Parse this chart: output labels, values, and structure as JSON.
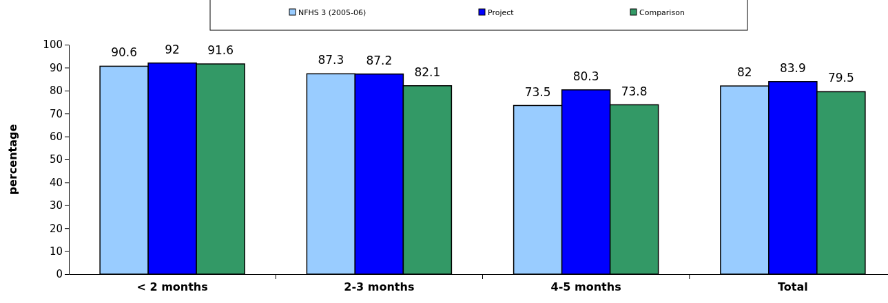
{
  "chart_data": {
    "type": "bar",
    "ylabel": "percentage",
    "categories": [
      "< 2 months",
      "2-3 months",
      "4-5 months",
      "Total"
    ],
    "series": [
      {
        "name": "NFHS 3 (2005-06)",
        "color": "#99ccff",
        "values": [
          90.6,
          87.3,
          73.5,
          82
        ]
      },
      {
        "name": "Project",
        "color": "#0000ff",
        "values": [
          92,
          87.2,
          80.3,
          83.9
        ]
      },
      {
        "name": "Comparison",
        "color": "#339966",
        "values": [
          91.6,
          82.1,
          73.8,
          79.5
        ]
      }
    ],
    "ylim": [
      0,
      100
    ],
    "yticks": [
      0,
      10,
      20,
      30,
      40,
      50,
      60,
      70,
      80,
      90,
      100
    ],
    "data_labels": true,
    "legend": "top"
  }
}
